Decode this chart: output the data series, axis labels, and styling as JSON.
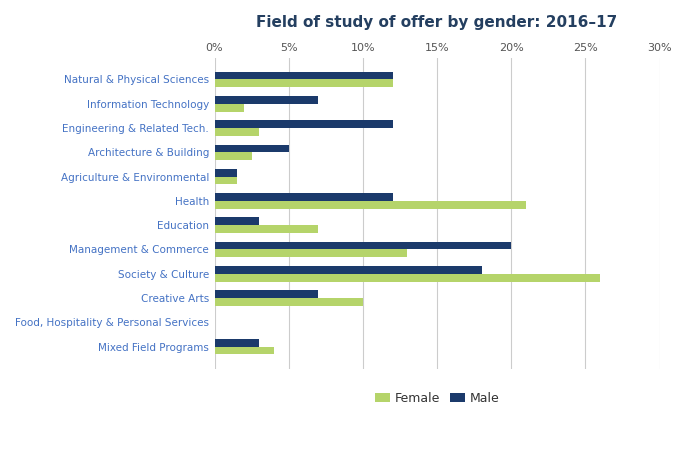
{
  "title": "Field of study of offer by gender: 2016–17",
  "categories": [
    "Natural & Physical Sciences",
    "Information Technology",
    "Engineering & Related Tech.",
    "Architecture & Building",
    "Agriculture & Environmental",
    "Health",
    "Education",
    "Management & Commerce",
    "Society & Culture",
    "Creative Arts",
    "Food, Hospitality & Personal Services",
    "Mixed Field Programs"
  ],
  "female": [
    12.0,
    2.0,
    3.0,
    2.5,
    1.5,
    21.0,
    7.0,
    13.0,
    26.0,
    10.0,
    0.0,
    4.0
  ],
  "male": [
    12.0,
    7.0,
    12.0,
    5.0,
    1.5,
    12.0,
    3.0,
    20.0,
    18.0,
    7.0,
    0.0,
    3.0
  ],
  "female_color": "#b5d46a",
  "male_color": "#1b3a6b",
  "xlim": [
    0,
    30
  ],
  "xticks": [
    0,
    5,
    10,
    15,
    20,
    25,
    30
  ],
  "label_color": "#4472c4",
  "title_color": "#243f60",
  "background_color": "#ffffff",
  "bar_height": 0.32,
  "grid_color": "#cccccc",
  "legend_labels": [
    "Female",
    "Male"
  ]
}
